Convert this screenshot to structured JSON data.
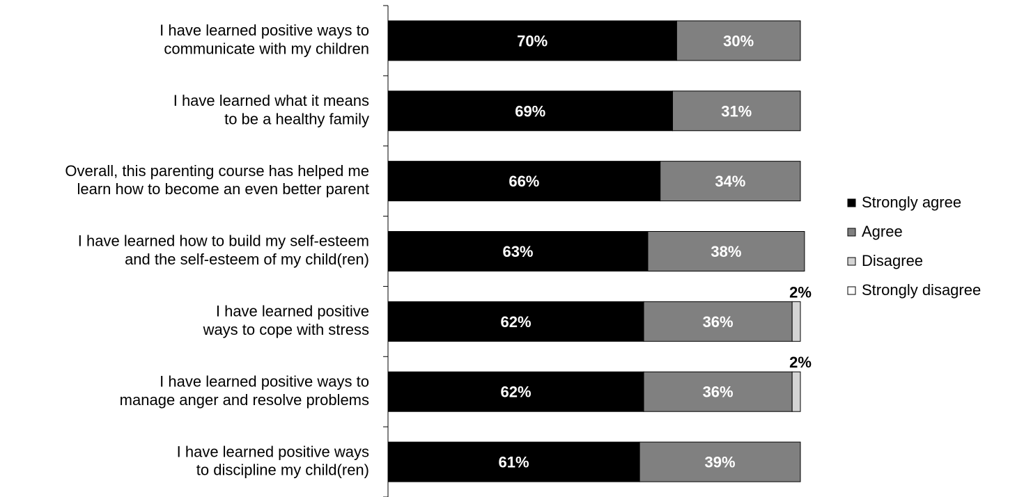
{
  "chart_data": {
    "type": "bar",
    "orientation": "horizontal",
    "stacked": true,
    "categories": [
      [
        "I have learned positive ways to",
        "communicate with my children"
      ],
      [
        "I have learned what it means",
        "to be a healthy family"
      ],
      [
        "Overall, this parenting course has helped me",
        "learn how to become an even better parent"
      ],
      [
        "I have learned how to build my self-esteem",
        "and the self-esteem of my child(ren)"
      ],
      [
        "I have learned positive",
        "ways to cope with stress"
      ],
      [
        "I have learned positive ways to",
        "manage anger and resolve problems"
      ],
      [
        "I have learned positive ways",
        "to discipline my child(ren)"
      ]
    ],
    "series": [
      {
        "name": "Strongly agree",
        "color": "#000000",
        "label_color": "#ffffff",
        "values": [
          70,
          69,
          66,
          63,
          62,
          62,
          61
        ],
        "labels": [
          "70%",
          "69%",
          "66%",
          "63%",
          "62%",
          "62%",
          "61%"
        ]
      },
      {
        "name": "Agree",
        "color": "#808080",
        "label_color": "#ffffff",
        "values": [
          30,
          31,
          34,
          38,
          36,
          36,
          39
        ],
        "labels": [
          "30%",
          "31%",
          "34%",
          "38%",
          "36%",
          "36%",
          "39%"
        ]
      },
      {
        "name": "Disagree",
        "color": "#d4d4d4",
        "label_color": "#000000",
        "values": [
          0,
          0,
          0,
          0,
          2,
          2,
          0
        ],
        "labels": [
          "",
          "",
          "",
          "",
          "2%",
          "2%",
          ""
        ]
      },
      {
        "name": "Strongly disagree",
        "color": "#ffffff",
        "label_color": "#000000",
        "values": [
          0,
          0,
          0,
          0,
          0,
          0,
          0
        ],
        "labels": [
          "",
          "",
          "",
          "",
          "",
          "",
          ""
        ]
      }
    ],
    "xlim": [
      0,
      100
    ],
    "legend": "right",
    "grid": false
  }
}
